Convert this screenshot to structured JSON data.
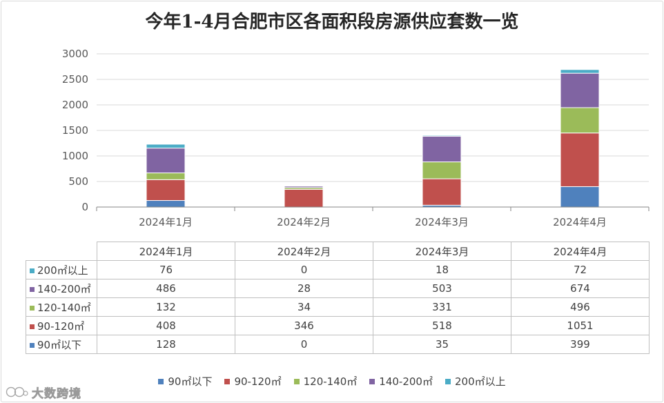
{
  "watermark": "大数跨境",
  "chart_data": {
    "type": "bar",
    "stacked": true,
    "title": "今年1-4月合肥市区各面积段房源供应套数一览",
    "categories": [
      "2024年1月",
      "2024年2月",
      "2024年3月",
      "2024年4月"
    ],
    "series": [
      {
        "name": "90㎡以下",
        "color": "#4F81BD",
        "values": [
          128,
          0,
          35,
          399
        ]
      },
      {
        "name": "90-120㎡",
        "color": "#C0504D",
        "values": [
          408,
          346,
          518,
          1051
        ]
      },
      {
        "name": "120-140㎡",
        "color": "#9BBB59",
        "values": [
          132,
          34,
          331,
          496
        ]
      },
      {
        "name": "140-200㎡",
        "color": "#8064A2",
        "values": [
          486,
          28,
          503,
          674
        ]
      },
      {
        "name": "200㎡以上",
        "color": "#4BACC6",
        "values": [
          76,
          0,
          18,
          72
        ]
      }
    ],
    "ylim": [
      0,
      3000
    ],
    "yticks": [
      0,
      500,
      1000,
      1500,
      2000,
      2500,
      3000
    ],
    "grid": true,
    "legend": "bottom",
    "data_table": true
  }
}
